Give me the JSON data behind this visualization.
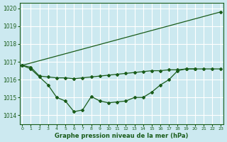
{
  "background_color": "#cce9f0",
  "grid_color": "#ffffff",
  "line_color": "#1a5c1a",
  "marker_color": "#1a5c1a",
  "xlabel": "Graphe pression niveau de la mer (hPa)",
  "ylim": [
    1013.5,
    1020.3
  ],
  "xlim": [
    -0.3,
    23.3
  ],
  "yticks": [
    1014,
    1015,
    1016,
    1017,
    1018,
    1019,
    1020
  ],
  "xticks": [
    0,
    1,
    2,
    3,
    4,
    5,
    6,
    7,
    8,
    9,
    10,
    11,
    12,
    13,
    14,
    15,
    16,
    17,
    18,
    19,
    20,
    21,
    22,
    23
  ],
  "series1_x": [
    0,
    23
  ],
  "series1_y": [
    1016.8,
    1019.8
  ],
  "series2_x": [
    0,
    1,
    2,
    3,
    4,
    5,
    6,
    7,
    8,
    9,
    10,
    11,
    12,
    13,
    14,
    15,
    16,
    17,
    18,
    19,
    20
  ],
  "series2_y": [
    1016.8,
    1016.7,
    1016.2,
    1016.15,
    1016.1,
    1016.1,
    1016.05,
    1016.1,
    1016.15,
    1016.2,
    1016.25,
    1016.3,
    1016.35,
    1016.4,
    1016.45,
    1016.5,
    1016.5,
    1016.55,
    1016.55,
    1016.6,
    1016.6
  ],
  "series3_x": [
    0,
    1,
    2,
    3,
    4,
    5,
    6,
    7,
    8,
    9,
    10,
    11,
    12,
    13,
    14,
    15,
    16,
    17,
    18,
    19,
    20,
    21,
    22,
    23
  ],
  "series3_y": [
    1016.8,
    1016.6,
    1016.15,
    1015.7,
    1015.0,
    1014.8,
    1014.2,
    1014.3,
    1015.05,
    1014.8,
    1014.7,
    1014.75,
    1014.8,
    1015.0,
    1015.0,
    1015.3,
    1015.7,
    1016.0,
    1016.5,
    1016.6,
    1016.6,
    1016.6,
    1016.6,
    1016.6
  ]
}
